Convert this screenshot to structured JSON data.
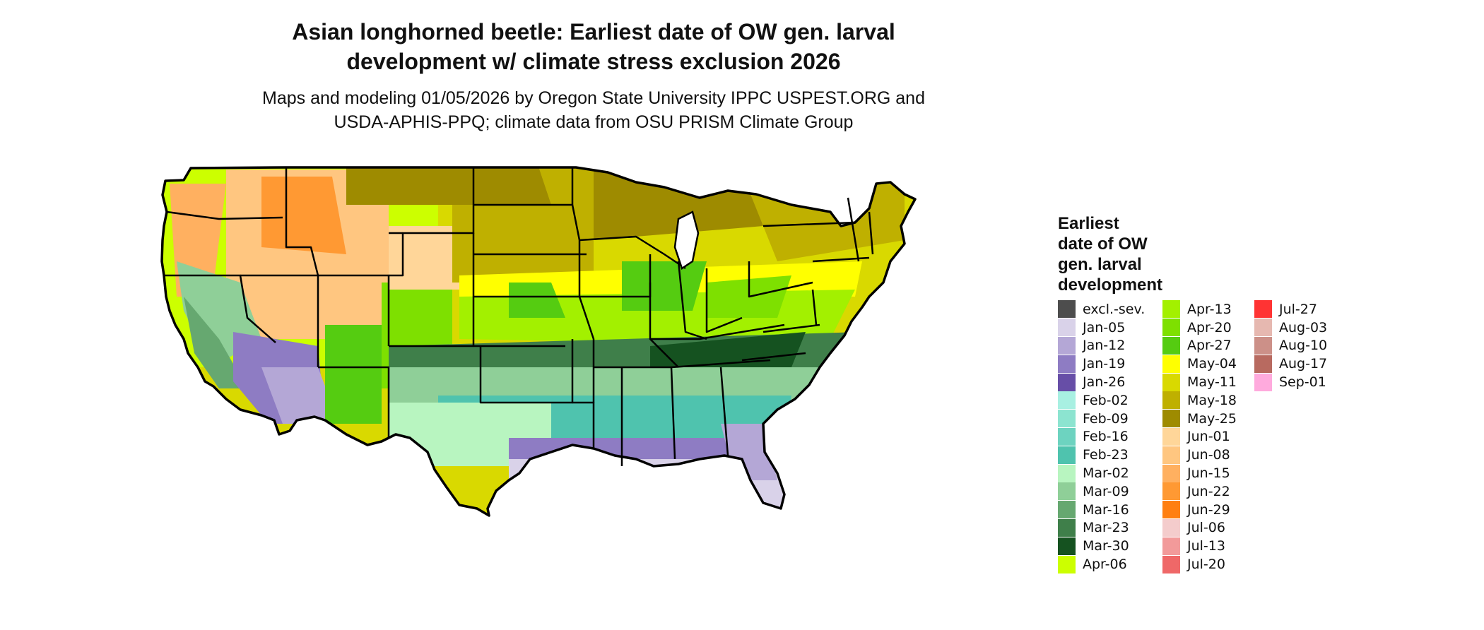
{
  "header": {
    "title_line1": "Asian longhorned beetle: Earliest date of OW gen. larval",
    "title_line2": "development w/ climate stress exclusion 2026",
    "subtitle_line1": "Maps and modeling 01/05/2026 by Oregon State University IPPC USPEST.ORG and",
    "subtitle_line2": "USDA-APHIS-PPQ; climate data from OSU PRISM Climate Group"
  },
  "legend": {
    "title_lines": [
      "Earliest",
      "date of OW",
      "gen. larval",
      "development"
    ],
    "columns": [
      [
        {
          "label": "excl.-sev.",
          "color": "#4d4d4d"
        },
        {
          "label": "Jan-05",
          "color": "#d9d2e9"
        },
        {
          "label": "Jan-12",
          "color": "#b4a7d6"
        },
        {
          "label": "Jan-19",
          "color": "#8e7cc3"
        },
        {
          "label": "Jan-26",
          "color": "#674ea7"
        },
        {
          "label": "Feb-02",
          "color": "#a8f0e2"
        },
        {
          "label": "Feb-09",
          "color": "#8ce4d0"
        },
        {
          "label": "Feb-16",
          "color": "#6dd3c0"
        },
        {
          "label": "Feb-23",
          "color": "#4fc3ae"
        },
        {
          "label": "Mar-02",
          "color": "#b8f5c0"
        },
        {
          "label": "Mar-09",
          "color": "#8fcf98"
        },
        {
          "label": "Mar-16",
          "color": "#66a870"
        },
        {
          "label": "Mar-23",
          "color": "#3f7f4a"
        },
        {
          "label": "Mar-30",
          "color": "#155220"
        },
        {
          "label": "Apr-06",
          "color": "#ccff00"
        }
      ],
      [
        {
          "label": "Apr-13",
          "color": "#a3f000"
        },
        {
          "label": "Apr-20",
          "color": "#7ee000"
        },
        {
          "label": "Apr-27",
          "color": "#55cc11"
        },
        {
          "label": "May-04",
          "color": "#ffff00"
        },
        {
          "label": "May-11",
          "color": "#d9d900"
        },
        {
          "label": "May-18",
          "color": "#bfb000"
        },
        {
          "label": "May-25",
          "color": "#9e8b00"
        },
        {
          "label": "Jun-01",
          "color": "#ffd699"
        },
        {
          "label": "Jun-08",
          "color": "#ffc680"
        },
        {
          "label": "Jun-15",
          "color": "#ffb060"
        },
        {
          "label": "Jun-22",
          "color": "#ff9933"
        },
        {
          "label": "Jun-29",
          "color": "#ff7f11"
        },
        {
          "label": "Jul-06",
          "color": "#f4cccc"
        },
        {
          "label": "Jul-13",
          "color": "#f29a9a"
        },
        {
          "label": "Jul-20",
          "color": "#ef6868"
        }
      ],
      [
        {
          "label": "Jul-27",
          "color": "#ff3333"
        },
        {
          "label": "Aug-03",
          "color": "#e6b8b0"
        },
        {
          "label": "Aug-10",
          "color": "#cc9088"
        },
        {
          "label": "Aug-17",
          "color": "#b86a60"
        },
        {
          "label": "Sep-01",
          "color": "#ffaadd"
        }
      ]
    ]
  }
}
